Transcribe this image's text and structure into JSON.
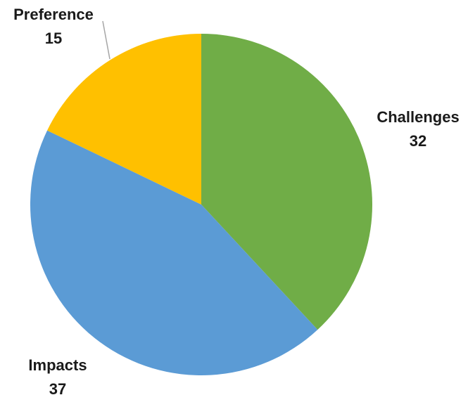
{
  "chart_data": {
    "type": "pie",
    "title": "",
    "start_angle_deg": 0,
    "direction": "clockwise",
    "slices": [
      {
        "label": "Challenges",
        "value": 32,
        "color": "#70ad47",
        "label_position": "right"
      },
      {
        "label": "Impacts",
        "value": 37,
        "color": "#5b9bd5",
        "label_position": "bottom-left"
      },
      {
        "label": "Preference",
        "value": 15,
        "color": "#ffc000",
        "label_position": "top-left",
        "leader_line": true
      }
    ],
    "legend": "none",
    "data_labels": "category-and-value"
  }
}
